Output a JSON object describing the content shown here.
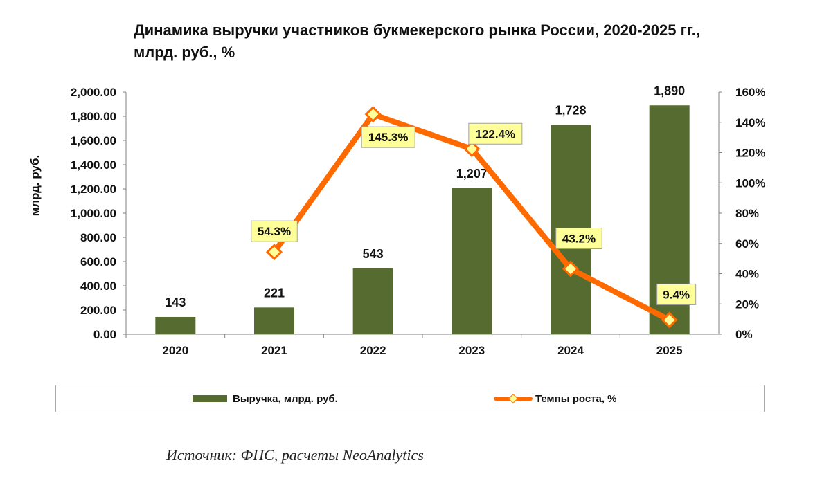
{
  "title": {
    "line1": "Динамика выручки участников букмекерского рынка России, 2020-2025 гг.,",
    "line2": "млрд. руб., %"
  },
  "chart_data": {
    "type": "bar+line",
    "categories": [
      "2020",
      "2021",
      "2022",
      "2023",
      "2024",
      "2025"
    ],
    "series": [
      {
        "name": "Выручка, млрд. руб.",
        "type": "bar",
        "axis": "left",
        "values": [
          143,
          221,
          543,
          1207,
          1728,
          1890
        ],
        "labels": [
          "143",
          "221",
          "543",
          "1,207",
          "1,728",
          "1,890"
        ]
      },
      {
        "name": "Темпы роста, %",
        "type": "line",
        "axis": "right",
        "values": [
          null,
          54.3,
          145.3,
          122.4,
          43.2,
          9.4
        ],
        "labels": [
          "",
          "54.3%",
          "145.3%",
          "122.4%",
          "43.2%",
          "9.4%"
        ]
      }
    ],
    "y_left": {
      "label": "млрд. руб.",
      "min": 0,
      "max": 2000,
      "step": 200,
      "ticks": [
        "0.00",
        "200.00",
        "400.00",
        "600.00",
        "800.00",
        "1,000.00",
        "1,200.00",
        "1,400.00",
        "1,600.00",
        "1,800.00",
        "2,000.00"
      ]
    },
    "y_right": {
      "min": 0,
      "max": 160,
      "step": 20,
      "ticks": [
        "0%",
        "20%",
        "40%",
        "60%",
        "80%",
        "100%",
        "120%",
        "140%",
        "160%"
      ]
    },
    "colors": {
      "bar": "#556b2f",
      "line": "#ff6a00",
      "marker_fill": "#ffff99",
      "label_bg": "#ffff99"
    },
    "legend_position": "bottom"
  },
  "legend": {
    "bar_label": "Выручка, млрд. руб.",
    "line_label": "Темпы роста, %"
  },
  "source": "Источник: ФНС, расчеты NeoAnalytics"
}
